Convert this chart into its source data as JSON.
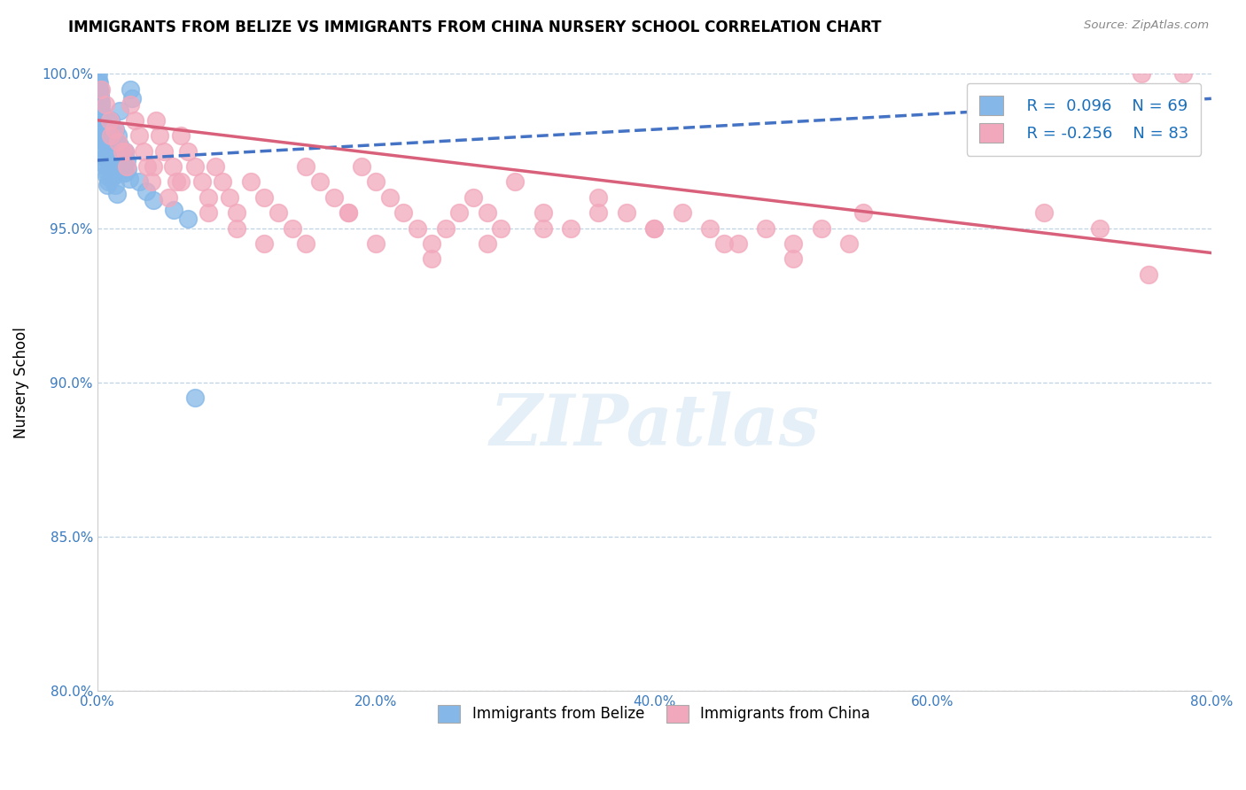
{
  "title": "IMMIGRANTS FROM BELIZE VS IMMIGRANTS FROM CHINA NURSERY SCHOOL CORRELATION CHART",
  "source": "Source: ZipAtlas.com",
  "ylabel": "Nursery School",
  "xlim": [
    0.0,
    80.0
  ],
  "ylim": [
    80.0,
    100.0
  ],
  "belize_color": "#85b8e8",
  "china_color": "#f2a8bc",
  "belize_line_color": "#4472c4",
  "china_line_color": "#d9607a",
  "belize_R": 0.096,
  "belize_N": 69,
  "china_R": -0.256,
  "china_N": 83,
  "belize_line_x0": 0.0,
  "belize_line_y0": 97.2,
  "belize_line_x1": 80.0,
  "belize_line_y1": 99.2,
  "china_line_x0": 0.0,
  "china_line_y0": 98.5,
  "china_line_x1": 80.0,
  "china_line_y1": 94.2,
  "belize_x": [
    0.1,
    0.15,
    0.2,
    0.25,
    0.3,
    0.35,
    0.4,
    0.45,
    0.5,
    0.55,
    0.6,
    0.65,
    0.7,
    0.75,
    0.8,
    0.85,
    0.9,
    0.95,
    1.0,
    1.1,
    1.2,
    1.3,
    1.4,
    1.5,
    1.6,
    1.7,
    1.8,
    1.9,
    2.0,
    2.1,
    2.2,
    2.3,
    2.4,
    2.5,
    0.1,
    0.15,
    0.2,
    0.25,
    0.3,
    0.35,
    0.4,
    0.45,
    0.5,
    0.55,
    0.6,
    0.65,
    0.7,
    0.75,
    0.8,
    0.85,
    0.9,
    0.95,
    1.0,
    1.1,
    1.2,
    1.3,
    1.4,
    1.5,
    1.6,
    1.7,
    1.8,
    1.9,
    2.0,
    3.0,
    3.5,
    4.0,
    5.5,
    6.5,
    7.0
  ],
  "belize_y": [
    99.8,
    99.5,
    99.3,
    99.0,
    98.8,
    98.5,
    98.2,
    98.0,
    97.8,
    97.5,
    97.3,
    97.0,
    96.8,
    96.5,
    98.5,
    98.2,
    97.9,
    97.6,
    97.3,
    97.0,
    96.7,
    96.4,
    96.1,
    98.0,
    97.7,
    97.4,
    97.1,
    96.8,
    97.5,
    97.2,
    96.9,
    96.6,
    99.5,
    99.2,
    100.0,
    99.7,
    99.4,
    99.1,
    98.8,
    98.5,
    98.2,
    97.9,
    97.6,
    97.3,
    97.0,
    96.7,
    96.4,
    97.8,
    97.5,
    97.2,
    96.9,
    96.6,
    98.5,
    97.3,
    97.1,
    98.2,
    97.8,
    97.5,
    98.8,
    97.4,
    97.2,
    97.0,
    96.8,
    96.5,
    96.2,
    95.9,
    95.6,
    95.3,
    89.5
  ],
  "china_x": [
    0.3,
    0.6,
    0.9,
    1.2,
    1.5,
    1.8,
    2.1,
    2.4,
    2.7,
    3.0,
    3.3,
    3.6,
    3.9,
    4.2,
    4.5,
    4.8,
    5.1,
    5.4,
    5.7,
    6.0,
    6.5,
    7.0,
    7.5,
    8.0,
    8.5,
    9.0,
    9.5,
    10.0,
    11.0,
    12.0,
    13.0,
    14.0,
    15.0,
    16.0,
    17.0,
    18.0,
    19.0,
    20.0,
    21.0,
    22.0,
    23.0,
    24.0,
    25.0,
    26.0,
    27.0,
    28.0,
    29.0,
    30.0,
    32.0,
    34.0,
    36.0,
    38.0,
    40.0,
    42.0,
    44.0,
    46.0,
    48.0,
    50.0,
    52.0,
    54.0,
    1.0,
    2.0,
    4.0,
    6.0,
    8.0,
    10.0,
    12.0,
    15.0,
    18.0,
    20.0,
    24.0,
    28.0,
    32.0,
    36.0,
    40.0,
    45.0,
    50.0,
    55.0,
    68.0,
    72.0,
    75.0,
    78.0,
    75.5
  ],
  "china_y": [
    99.5,
    99.0,
    98.5,
    98.2,
    97.8,
    97.5,
    97.0,
    99.0,
    98.5,
    98.0,
    97.5,
    97.0,
    96.5,
    98.5,
    98.0,
    97.5,
    96.0,
    97.0,
    96.5,
    98.0,
    97.5,
    97.0,
    96.5,
    96.0,
    97.0,
    96.5,
    96.0,
    95.5,
    96.5,
    96.0,
    95.5,
    95.0,
    97.0,
    96.5,
    96.0,
    95.5,
    97.0,
    96.5,
    96.0,
    95.5,
    95.0,
    94.5,
    95.0,
    95.5,
    96.0,
    95.5,
    95.0,
    96.5,
    95.5,
    95.0,
    96.0,
    95.5,
    95.0,
    95.5,
    95.0,
    94.5,
    95.0,
    94.5,
    95.0,
    94.5,
    98.0,
    97.5,
    97.0,
    96.5,
    95.5,
    95.0,
    94.5,
    94.5,
    95.5,
    94.5,
    94.0,
    94.5,
    95.0,
    95.5,
    95.0,
    94.5,
    94.0,
    95.5,
    95.5,
    95.0,
    100.0,
    100.0,
    93.5
  ]
}
